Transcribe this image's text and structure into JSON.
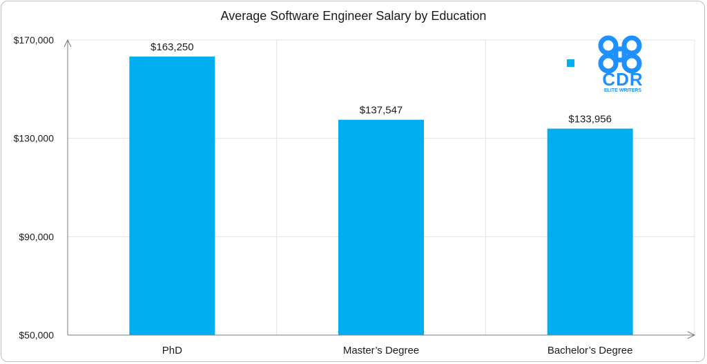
{
  "chart_data": {
    "type": "bar",
    "title": "Average Software Engineer Salary by Education",
    "categories": [
      "PhD",
      "Master’s Degree",
      "Bachelor’s Degree"
    ],
    "values": [
      163250,
      137547,
      133956
    ],
    "data_labels": [
      "$163,250",
      "$137,547",
      "$133,956"
    ],
    "yticks": [
      50000,
      90000,
      130000,
      170000
    ],
    "ytick_labels": [
      "$50,000",
      "$90,000",
      "$130,000",
      "$170,000"
    ],
    "ylim": [
      50000,
      170000
    ],
    "xlabel": "",
    "ylabel": "",
    "grid": true,
    "bar_color": "#00AEEF",
    "legend_placement": "top-right"
  },
  "logo": {
    "text": "CDR",
    "subtext": "ELITE WRITERS",
    "color": "#1E90FF"
  }
}
